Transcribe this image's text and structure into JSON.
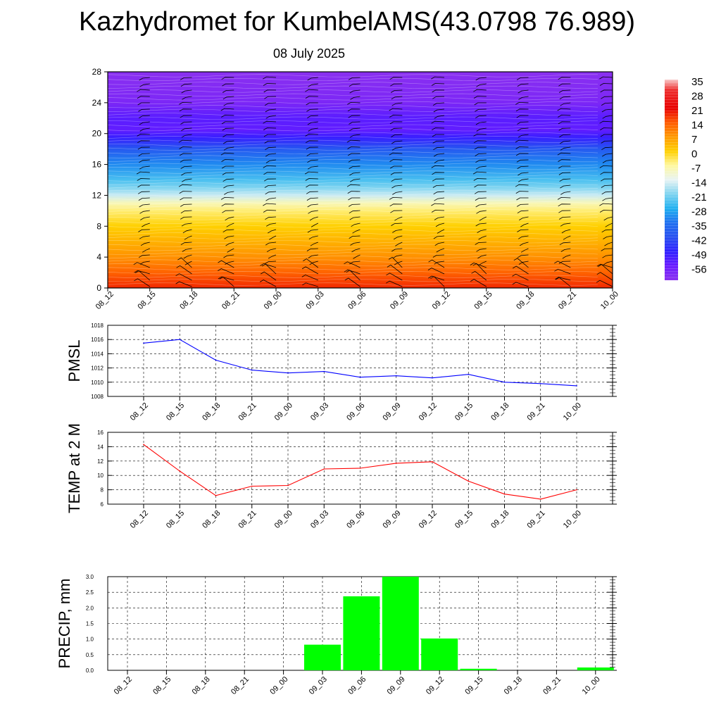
{
  "title": "Kazhydromet for KumbelAMS(43.0798 76.989)",
  "subtitle": "08 July 2025",
  "time_labels": [
    "08_12",
    "08_15",
    "08_18",
    "08_21",
    "09_00",
    "09_03",
    "09_06",
    "09_09",
    "09_12",
    "09_15",
    "09_18",
    "09_21",
    "10_00"
  ],
  "colors": {
    "pmsl_line": "#0000ff",
    "temp_line": "#ff0000",
    "precip_bar": "#00ff00",
    "grid": "#000000"
  },
  "chart_data": [
    {
      "type": "heatmap",
      "name": "upper-air-temperature-cross-section",
      "y_ticks": [
        0,
        4,
        8,
        12,
        16,
        20,
        24,
        28
      ],
      "ylim": [
        0,
        28
      ],
      "temperature_by_height": [
        {
          "y": 0,
          "t": 18
        },
        {
          "y": 2,
          "t": 13
        },
        {
          "y": 4,
          "t": 8
        },
        {
          "y": 6,
          "t": 4
        },
        {
          "y": 8,
          "t": 0
        },
        {
          "y": 10,
          "t": -5
        },
        {
          "y": 11,
          "t": -9
        },
        {
          "y": 12,
          "t": -16
        },
        {
          "y": 13,
          "t": -21
        },
        {
          "y": 14,
          "t": -25
        },
        {
          "y": 16,
          "t": -32
        },
        {
          "y": 18,
          "t": -40
        },
        {
          "y": 19.5,
          "t": -50
        },
        {
          "y": 20.5,
          "t": -55
        },
        {
          "y": 22,
          "t": -54
        },
        {
          "y": 24,
          "t": -60
        },
        {
          "y": 28,
          "t": -63
        }
      ],
      "wind_barbs": "present (wind barbs overlaid at each time step)",
      "colorbar": {
        "labels": [
          "35",
          "28",
          "21",
          "14",
          "7",
          "0",
          "-7",
          "-14",
          "-21",
          "-28",
          "-35",
          "-42",
          "-49",
          "-56"
        ],
        "stops": [
          {
            "v": 35,
            "c": "#f8c8c8"
          },
          {
            "v": 30,
            "c": "#ee3030"
          },
          {
            "v": 21,
            "c": "#e80000"
          },
          {
            "v": 14,
            "c": "#ff5a00"
          },
          {
            "v": 7,
            "c": "#ff9a00"
          },
          {
            "v": 0,
            "c": "#ffd000"
          },
          {
            "v": -7,
            "c": "#fff8a0"
          },
          {
            "v": -14,
            "c": "#e8f4f4"
          },
          {
            "v": -21,
            "c": "#7fd4f0"
          },
          {
            "v": -28,
            "c": "#20b0f0"
          },
          {
            "v": -35,
            "c": "#2070f0"
          },
          {
            "v": -42,
            "c": "#2850f0"
          },
          {
            "v": -49,
            "c": "#3020ff"
          },
          {
            "v": -56,
            "c": "#6a1cff"
          },
          {
            "v": -63,
            "c": "#8a30f0"
          }
        ]
      }
    },
    {
      "type": "line",
      "ylabel": "PMSL",
      "ylim": [
        1008,
        1018
      ],
      "y_ticks": [
        1008,
        1010,
        1012,
        1014,
        1016,
        1018
      ],
      "values": [
        1015.5,
        1016.0,
        1013.1,
        1011.7,
        1011.3,
        1011.5,
        1010.7,
        1010.9,
        1010.6,
        1011.1,
        1010.0,
        1009.8,
        1009.5
      ]
    },
    {
      "type": "line",
      "ylabel": "TEMP at 2 M",
      "ylim": [
        6,
        16
      ],
      "y_ticks": [
        6,
        8,
        10,
        12,
        14,
        16
      ],
      "values": [
        14.3,
        10.6,
        7.2,
        8.5,
        8.6,
        10.9,
        11.0,
        11.7,
        11.9,
        9.2,
        7.4,
        6.7,
        8.0
      ]
    },
    {
      "type": "bar",
      "ylabel": "PRECIP, mm",
      "ylim": [
        0,
        3.0
      ],
      "y_ticks": [
        "0.0",
        "0.5",
        "1.0",
        "1.5",
        "2.0",
        "2.5",
        "3.0"
      ],
      "values": [
        0,
        0,
        0,
        0,
        0,
        0.82,
        2.37,
        3.0,
        1.02,
        0.05,
        0,
        0,
        0.09
      ]
    }
  ]
}
